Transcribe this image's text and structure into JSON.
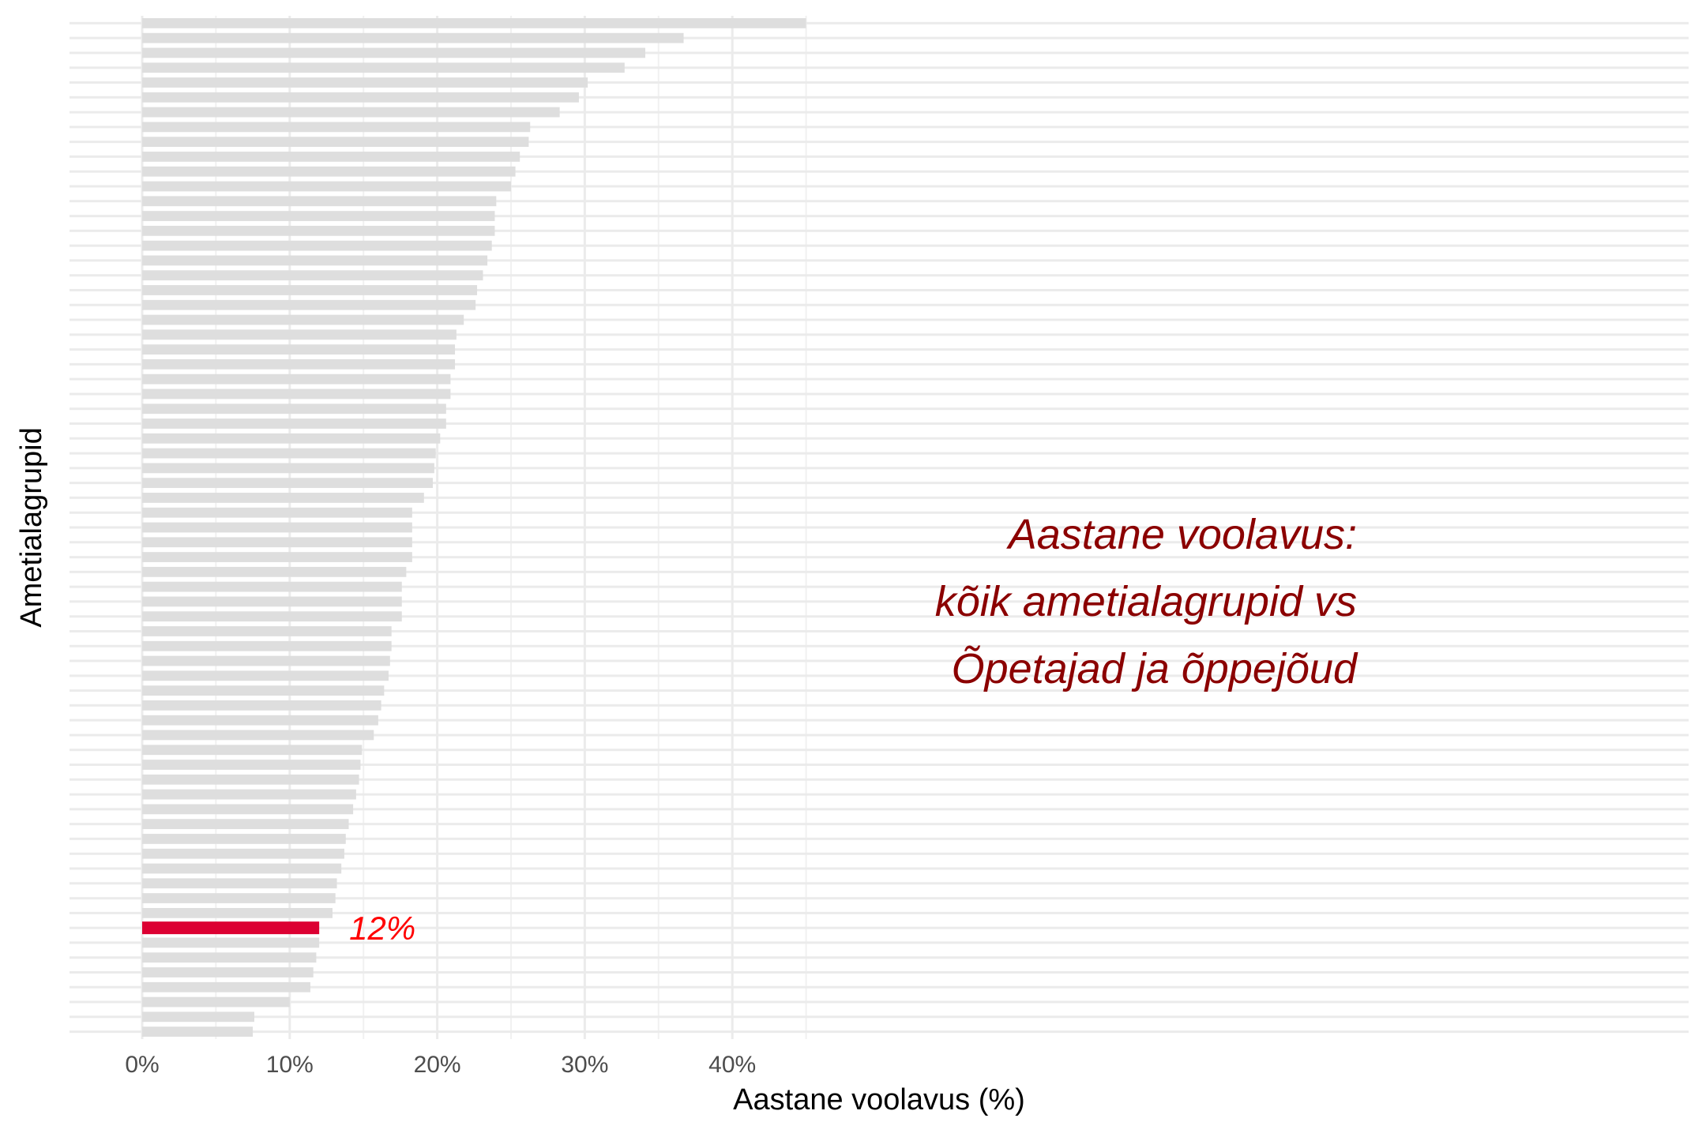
{
  "chart_data": {
    "type": "bar",
    "orientation": "horizontal",
    "xlabel": "Aastane voolavus (%)",
    "ylabel": "Ametialagrupid",
    "xlim": [
      -2.2,
      47.2
    ],
    "x_ticks": [
      0,
      10,
      20,
      30,
      40
    ],
    "x_tick_labels": [
      "0%",
      "10%",
      "20%",
      "30%",
      "40%"
    ],
    "grid": true,
    "legend": "none",
    "bar_color": "#dedede",
    "highlight_color": "#dc0032",
    "values": [
      45.0,
      36.7,
      34.1,
      32.7,
      30.2,
      29.6,
      28.3,
      26.3,
      26.2,
      25.6,
      25.3,
      25.0,
      24.0,
      23.9,
      23.9,
      23.7,
      23.4,
      23.1,
      22.7,
      22.6,
      21.8,
      21.3,
      21.2,
      21.2,
      20.9,
      20.9,
      20.6,
      20.6,
      20.2,
      19.9,
      19.8,
      19.7,
      19.1,
      18.3,
      18.3,
      18.3,
      18.3,
      17.9,
      17.6,
      17.6,
      17.6,
      16.9,
      16.9,
      16.8,
      16.7,
      16.4,
      16.2,
      16.0,
      15.7,
      14.9,
      14.8,
      14.7,
      14.5,
      14.3,
      14.0,
      13.8,
      13.7,
      13.5,
      13.2,
      13.1,
      12.9,
      12.0,
      12.0,
      11.8,
      11.6,
      11.4,
      10.0,
      7.6,
      7.5
    ],
    "highlight_index": 61,
    "highlight_label": "12%",
    "annotation": [
      "Aastane voolavus:",
      "kõik ametialagrupid vs",
      "Õpetajad ja õppejõud"
    ]
  }
}
